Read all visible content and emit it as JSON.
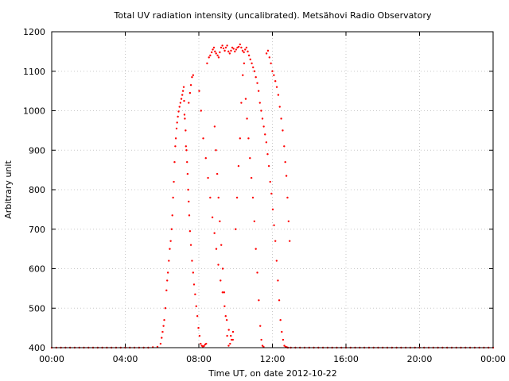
{
  "chart_data": {
    "type": "scatter",
    "title": "Total UV radiation intensity (uncalibrated). Metsähovi Radio Observatory",
    "xlabel": "Time UT, on date 2012-10-22",
    "ylabel": "Arbitrary unit",
    "xlim": [
      0,
      24
    ],
    "ylim": [
      400,
      1200
    ],
    "xticks": [
      0,
      4,
      8,
      12,
      16,
      20,
      24
    ],
    "xtick_labels": [
      "00:00",
      "04:00",
      "08:00",
      "12:00",
      "16:00",
      "20:00",
      "00:00"
    ],
    "yticks": [
      400,
      500,
      600,
      700,
      800,
      900,
      1000,
      1100,
      1200
    ],
    "ytick_labels": [
      "400",
      "500",
      "600",
      "700",
      "800",
      "900",
      "1000",
      "1100",
      "1200"
    ],
    "grid": true,
    "colors": {
      "points": "#ff0000",
      "grid": "#c8c8c8",
      "axes": "#000000",
      "background": "#ffffff"
    },
    "series": [
      {
        "values": [
          [
            0.0,
            400
          ],
          [
            0.25,
            400
          ],
          [
            0.5,
            400
          ],
          [
            0.75,
            400
          ],
          [
            1.0,
            400
          ],
          [
            1.25,
            400
          ],
          [
            1.5,
            400
          ],
          [
            1.75,
            400
          ],
          [
            2.0,
            400
          ],
          [
            2.25,
            400
          ],
          [
            2.5,
            400
          ],
          [
            2.75,
            400
          ],
          [
            3.0,
            400
          ],
          [
            3.25,
            400
          ],
          [
            3.5,
            400
          ],
          [
            3.75,
            400
          ],
          [
            4.0,
            400
          ],
          [
            4.25,
            400
          ],
          [
            4.5,
            400
          ],
          [
            4.75,
            400
          ],
          [
            5.0,
            400
          ],
          [
            5.25,
            400
          ],
          [
            5.5,
            401
          ],
          [
            5.75,
            402
          ],
          [
            5.92,
            410
          ],
          [
            5.98,
            425
          ],
          [
            6.03,
            440
          ],
          [
            6.08,
            455
          ],
          [
            6.12,
            470
          ],
          [
            6.18,
            500
          ],
          [
            6.24,
            545
          ],
          [
            6.28,
            570
          ],
          [
            6.32,
            590
          ],
          [
            6.37,
            620
          ],
          [
            6.42,
            650
          ],
          [
            6.47,
            670
          ],
          [
            6.52,
            700
          ],
          [
            6.56,
            735
          ],
          [
            6.6,
            780
          ],
          [
            6.64,
            820
          ],
          [
            6.68,
            870
          ],
          [
            6.72,
            910
          ],
          [
            6.75,
            930
          ],
          [
            6.79,
            955
          ],
          [
            6.82,
            970
          ],
          [
            6.86,
            985
          ],
          [
            6.9,
            998
          ],
          [
            6.95,
            1010
          ],
          [
            7.0,
            1020
          ],
          [
            7.05,
            1030
          ],
          [
            7.1,
            1040
          ],
          [
            7.14,
            1050
          ],
          [
            7.18,
            1060
          ],
          [
            7.2,
            1025
          ],
          [
            7.22,
            990
          ],
          [
            7.24,
            980
          ],
          [
            7.28,
            950
          ],
          [
            7.3,
            910
          ],
          [
            7.33,
            900
          ],
          [
            7.36,
            870
          ],
          [
            7.39,
            840
          ],
          [
            7.42,
            800
          ],
          [
            7.45,
            770
          ],
          [
            7.48,
            735
          ],
          [
            7.52,
            695
          ],
          [
            7.57,
            660
          ],
          [
            7.63,
            620
          ],
          [
            7.69,
            590
          ],
          [
            7.74,
            560
          ],
          [
            7.8,
            535
          ],
          [
            7.86,
            505
          ],
          [
            7.92,
            480
          ],
          [
            7.98,
            450
          ],
          [
            8.04,
            430
          ],
          [
            8.1,
            410
          ],
          [
            8.16,
            405
          ],
          [
            8.22,
            403
          ],
          [
            8.28,
            404
          ],
          [
            8.34,
            408
          ],
          [
            8.4,
            410
          ],
          [
            7.45,
            1020
          ],
          [
            7.52,
            1045
          ],
          [
            7.57,
            1065
          ],
          [
            7.63,
            1085
          ],
          [
            7.69,
            1090
          ],
          [
            8.02,
            1050
          ],
          [
            8.12,
            1000
          ],
          [
            8.24,
            930
          ],
          [
            8.38,
            880
          ],
          [
            8.5,
            830
          ],
          [
            8.62,
            780
          ],
          [
            8.74,
            730
          ],
          [
            8.85,
            690
          ],
          [
            8.95,
            650
          ],
          [
            9.06,
            610
          ],
          [
            9.18,
            570
          ],
          [
            9.29,
            540
          ],
          [
            9.4,
            505
          ],
          [
            9.52,
            470
          ],
          [
            9.63,
            445
          ],
          [
            9.74,
            430
          ],
          [
            9.85,
            420
          ],
          [
            8.45,
            1120
          ],
          [
            8.55,
            1135
          ],
          [
            8.62,
            1140
          ],
          [
            8.7,
            1148
          ],
          [
            8.76,
            1155
          ],
          [
            8.82,
            1160
          ],
          [
            8.88,
            1150
          ],
          [
            8.94,
            1145
          ],
          [
            9.02,
            1140
          ],
          [
            9.08,
            1135
          ],
          [
            9.14,
            1148
          ],
          [
            9.21,
            1160
          ],
          [
            9.28,
            1165
          ],
          [
            9.34,
            1158
          ],
          [
            9.41,
            1152
          ],
          [
            9.47,
            1160
          ],
          [
            9.54,
            1165
          ],
          [
            9.61,
            1150
          ],
          [
            9.68,
            1145
          ],
          [
            9.75,
            1152
          ],
          [
            9.82,
            1160
          ],
          [
            9.89,
            1157
          ],
          [
            9.96,
            1150
          ],
          [
            10.03,
            1155
          ],
          [
            10.1,
            1160
          ],
          [
            10.17,
            1162
          ],
          [
            10.24,
            1168
          ],
          [
            10.31,
            1160
          ],
          [
            10.38,
            1152
          ],
          [
            10.45,
            1148
          ],
          [
            10.52,
            1155
          ],
          [
            10.59,
            1160
          ],
          [
            10.66,
            1150
          ],
          [
            10.73,
            1140
          ],
          [
            8.86,
            960
          ],
          [
            8.93,
            900
          ],
          [
            9.0,
            840
          ],
          [
            9.07,
            780
          ],
          [
            9.14,
            720
          ],
          [
            9.22,
            660
          ],
          [
            9.3,
            600
          ],
          [
            9.38,
            540
          ],
          [
            9.46,
            480
          ],
          [
            9.54,
            430
          ],
          [
            9.62,
            405
          ],
          [
            9.7,
            410
          ],
          [
            9.78,
            420
          ],
          [
            9.86,
            440
          ],
          [
            10.0,
            700
          ],
          [
            10.08,
            780
          ],
          [
            10.16,
            860
          ],
          [
            10.24,
            930
          ],
          [
            10.31,
            1020
          ],
          [
            10.39,
            1090
          ],
          [
            10.46,
            1120
          ],
          [
            10.55,
            1030
          ],
          [
            10.62,
            980
          ],
          [
            10.7,
            930
          ],
          [
            10.78,
            880
          ],
          [
            10.86,
            830
          ],
          [
            10.94,
            780
          ],
          [
            11.02,
            720
          ],
          [
            11.1,
            650
          ],
          [
            11.18,
            590
          ],
          [
            11.26,
            520
          ],
          [
            11.34,
            455
          ],
          [
            11.4,
            420
          ],
          [
            11.46,
            405
          ],
          [
            11.52,
            402
          ],
          [
            10.8,
            1130
          ],
          [
            10.88,
            1120
          ],
          [
            10.95,
            1110
          ],
          [
            11.02,
            1100
          ],
          [
            11.1,
            1085
          ],
          [
            11.18,
            1070
          ],
          [
            11.25,
            1050
          ],
          [
            11.32,
            1020
          ],
          [
            11.39,
            1000
          ],
          [
            11.46,
            980
          ],
          [
            11.53,
            960
          ],
          [
            11.6,
            940
          ],
          [
            11.67,
            920
          ],
          [
            11.74,
            890
          ],
          [
            11.81,
            860
          ],
          [
            11.88,
            820
          ],
          [
            11.95,
            790
          ],
          [
            12.02,
            750
          ],
          [
            12.09,
            710
          ],
          [
            12.16,
            670
          ],
          [
            12.23,
            620
          ],
          [
            12.3,
            570
          ],
          [
            12.37,
            520
          ],
          [
            12.44,
            470
          ],
          [
            12.51,
            440
          ],
          [
            12.58,
            420
          ],
          [
            12.65,
            405
          ],
          [
            12.72,
            402
          ],
          [
            12.78,
            401
          ],
          [
            12.84,
            400
          ],
          [
            11.68,
            1145
          ],
          [
            11.76,
            1152
          ],
          [
            11.84,
            1135
          ],
          [
            11.92,
            1120
          ],
          [
            12.0,
            1100
          ],
          [
            12.08,
            1090
          ],
          [
            12.16,
            1075
          ],
          [
            12.24,
            1060
          ],
          [
            12.32,
            1040
          ],
          [
            12.4,
            1010
          ],
          [
            12.48,
            980
          ],
          [
            12.56,
            950
          ],
          [
            12.64,
            910
          ],
          [
            12.7,
            870
          ],
          [
            12.76,
            835
          ],
          [
            12.82,
            780
          ],
          [
            12.88,
            720
          ],
          [
            12.94,
            670
          ],
          [
            13.0,
            400
          ],
          [
            13.25,
            400
          ],
          [
            13.5,
            400
          ],
          [
            13.75,
            400
          ],
          [
            14.0,
            400
          ],
          [
            14.25,
            400
          ],
          [
            14.5,
            400
          ],
          [
            14.75,
            400
          ],
          [
            15.0,
            400
          ],
          [
            15.25,
            400
          ],
          [
            15.5,
            400
          ],
          [
            15.75,
            400
          ],
          [
            16.0,
            400
          ],
          [
            16.25,
            400
          ],
          [
            16.5,
            400
          ],
          [
            16.75,
            400
          ],
          [
            17.0,
            400
          ],
          [
            17.25,
            400
          ],
          [
            17.5,
            400
          ],
          [
            17.75,
            400
          ],
          [
            18.0,
            400
          ],
          [
            18.25,
            400
          ],
          [
            18.5,
            400
          ],
          [
            18.75,
            400
          ],
          [
            19.0,
            400
          ],
          [
            19.25,
            400
          ],
          [
            19.5,
            400
          ],
          [
            19.75,
            400
          ],
          [
            20.0,
            400
          ],
          [
            20.25,
            400
          ],
          [
            20.5,
            400
          ],
          [
            20.75,
            400
          ],
          [
            21.0,
            400
          ],
          [
            21.25,
            400
          ],
          [
            21.5,
            400
          ],
          [
            21.75,
            400
          ],
          [
            22.0,
            400
          ],
          [
            22.25,
            400
          ],
          [
            22.5,
            400
          ],
          [
            22.75,
            400
          ],
          [
            23.0,
            400
          ],
          [
            23.25,
            400
          ],
          [
            23.5,
            400
          ],
          [
            23.75,
            400
          ],
          [
            24.0,
            400
          ]
        ]
      }
    ]
  }
}
